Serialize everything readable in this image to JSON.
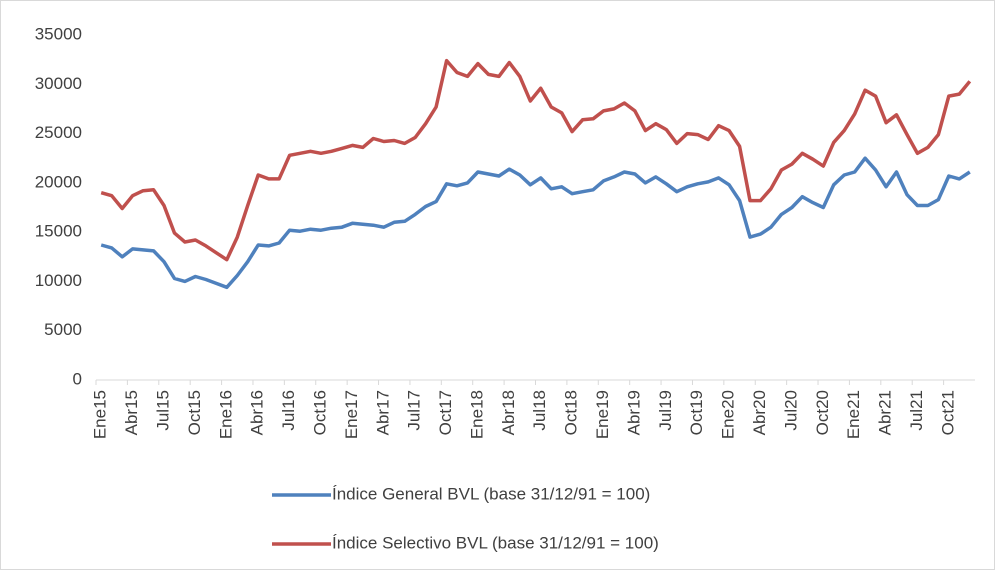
{
  "chart_data": {
    "type": "line",
    "categories": [
      "Ene15",
      null,
      null,
      "Abr15",
      null,
      null,
      "Jul15",
      null,
      null,
      "Oct15",
      null,
      null,
      "Ene16",
      null,
      null,
      "Abr16",
      null,
      null,
      "Jul16",
      null,
      null,
      "Oct16",
      null,
      null,
      "Ene17",
      null,
      null,
      "Abr17",
      null,
      null,
      "Jul17",
      null,
      null,
      "Oct17",
      null,
      null,
      "Ene18",
      null,
      null,
      "Abr18",
      null,
      null,
      "Jul18",
      null,
      null,
      "Oct18",
      null,
      null,
      "Ene19",
      null,
      null,
      "Abr19",
      null,
      null,
      "Jul19",
      null,
      null,
      "Oct19",
      null,
      null,
      "Ene20",
      null,
      null,
      "Abr20",
      null,
      null,
      "Jul20",
      null,
      null,
      "Oct20",
      null,
      null,
      "Ene21",
      null,
      null,
      "Abr21",
      null,
      null,
      "Jul21",
      null,
      null,
      "Oct21",
      null,
      null
    ],
    "series": [
      {
        "name": "Índice General BVL (base 31/12/91 = 100)",
        "color": "#4f81bd",
        "values": [
          13700,
          13400,
          12500,
          13300,
          13200,
          13100,
          12000,
          10300,
          10000,
          10500,
          10200,
          9800,
          9400,
          10600,
          12000,
          13700,
          13600,
          13900,
          15200,
          15100,
          15300,
          15200,
          15400,
          15500,
          15900,
          15800,
          15700,
          15500,
          16000,
          16100,
          16800,
          17600,
          18100,
          19900,
          19700,
          20000,
          21100,
          20900,
          20700,
          21400,
          20800,
          19800,
          20500,
          19400,
          19600,
          18900,
          19100,
          19300,
          20200,
          20600,
          21100,
          20900,
          20000,
          20600,
          19900,
          19100,
          19600,
          19900,
          20100,
          20500,
          19800,
          18200,
          14500,
          14800,
          15500,
          16800,
          17500,
          18600,
          18000,
          17500,
          19800,
          20800,
          21100,
          22500,
          21300,
          19600,
          21100,
          18800,
          17700,
          17700,
          18300,
          20700,
          20400,
          21100
        ]
      },
      {
        "name": "Índice Selectivo BVL (base 31/12/91 = 100)",
        "color": "#c0504d",
        "values": [
          19000,
          18700,
          17400,
          18700,
          19200,
          19300,
          17700,
          14900,
          14000,
          14200,
          13600,
          12900,
          12200,
          14500,
          17700,
          20800,
          20400,
          20400,
          22800,
          23000,
          23200,
          23000,
          23200,
          23500,
          23800,
          23600,
          24500,
          24200,
          24300,
          24000,
          24600,
          26000,
          27700,
          32400,
          31200,
          30800,
          32100,
          31000,
          30800,
          32200,
          30800,
          28300,
          29600,
          27700,
          27100,
          25200,
          26400,
          26500,
          27300,
          27500,
          28100,
          27300,
          25300,
          26000,
          25400,
          24000,
          25000,
          24900,
          24400,
          25800,
          25300,
          23700,
          18200,
          18200,
          19400,
          21300,
          21900,
          23000,
          22400,
          21700,
          24100,
          25300,
          27000,
          29400,
          28800,
          26100,
          26900,
          24900,
          23000,
          23600,
          24900,
          28800,
          29000,
          30300
        ]
      }
    ],
    "ylim": [
      0,
      35000
    ],
    "yticks": [
      0,
      5000,
      10000,
      15000,
      20000,
      25000,
      30000,
      35000
    ],
    "grid": false
  }
}
